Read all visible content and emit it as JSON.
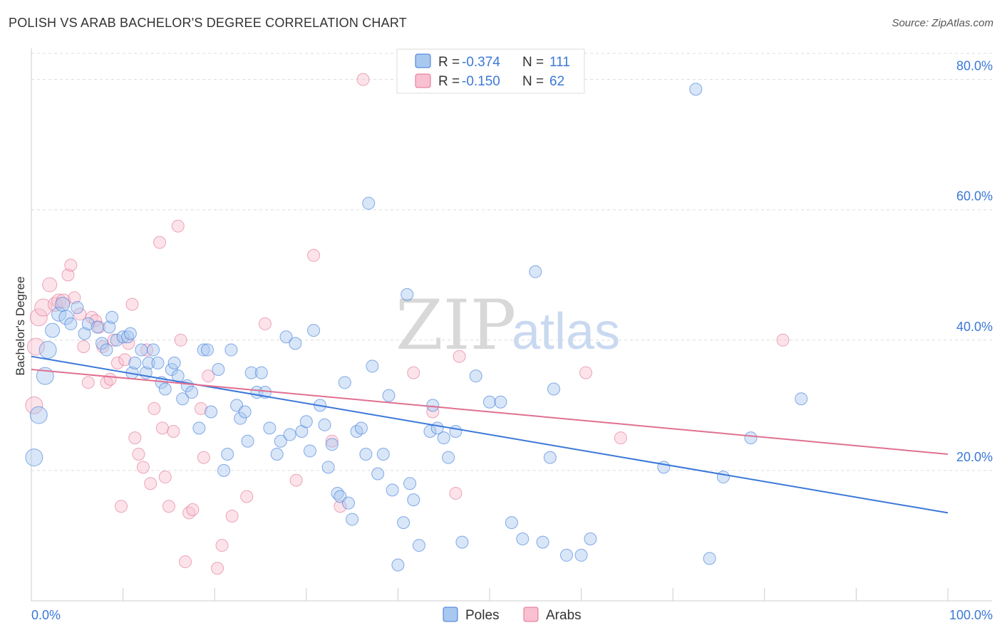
{
  "header": {
    "title": "POLISH VS ARAB BACHELOR'S DEGREE CORRELATION CHART",
    "source": "Source: ZipAtlas.com"
  },
  "watermark": {
    "zip": "ZIP",
    "atlas": "atlas"
  },
  "legend": {
    "rows": [
      {
        "r_label": "R =",
        "r_value": "-0.374",
        "n_label": "N =",
        "n_value": "111",
        "color": "#a8c8f0",
        "stroke": "#3b78d8"
      },
      {
        "r_label": "R =",
        "r_value": "-0.150",
        "n_label": "N =",
        "n_value": "62",
        "color": "#f8c0d0",
        "stroke": "#e07090"
      }
    ]
  },
  "bottom_legend": {
    "poles": "Poles",
    "arabs": "Arabs"
  },
  "chart_data": {
    "type": "scatter",
    "title": "POLISH VS ARAB BACHELOR'S DEGREE CORRELATION CHART",
    "xlabel": "",
    "ylabel": "Bachelor's Degree",
    "xlim": [
      0,
      100
    ],
    "ylim": [
      0,
      84
    ],
    "x_tick_labels": [
      "0.0%",
      "100.0%"
    ],
    "y_ticks": [
      20,
      40,
      60,
      80
    ],
    "y_tick_labels": [
      "20.0%",
      "40.0%",
      "60.0%",
      "80.0%"
    ],
    "grid": true,
    "colors": {
      "poles": "#3b78d8",
      "poles_fill": "#a8c8f0",
      "arabs": "#e07090",
      "arabs_fill": "#f8c0d0"
    },
    "series": [
      {
        "name": "Poles",
        "trend": {
          "x": [
            0,
            100
          ],
          "y": [
            37.5,
            13.5
          ]
        },
        "points": [
          [
            0.3,
            22
          ],
          [
            0.8,
            28.5
          ],
          [
            1.5,
            34.5
          ],
          [
            1.8,
            38.5
          ],
          [
            2.3,
            41.5
          ],
          [
            3,
            44
          ],
          [
            3.4,
            45.5
          ],
          [
            3.8,
            43.5
          ],
          [
            4.3,
            42.5
          ],
          [
            5,
            45
          ],
          [
            5.8,
            41
          ],
          [
            6.2,
            42.5
          ],
          [
            7.2,
            42
          ],
          [
            7.7,
            39.5
          ],
          [
            8.2,
            38.5
          ],
          [
            8.5,
            42
          ],
          [
            8.8,
            43.5
          ],
          [
            9.3,
            40
          ],
          [
            10,
            40.5
          ],
          [
            10.5,
            40.5
          ],
          [
            10.8,
            41
          ],
          [
            11,
            35
          ],
          [
            11.3,
            36.5
          ],
          [
            12,
            38.5
          ],
          [
            12.5,
            35
          ],
          [
            12.8,
            36.5
          ],
          [
            13.3,
            38.5
          ],
          [
            13.8,
            36.5
          ],
          [
            14.2,
            33.5
          ],
          [
            14.6,
            32.5
          ],
          [
            15.3,
            35.5
          ],
          [
            15.6,
            36.5
          ],
          [
            16,
            34.5
          ],
          [
            16.5,
            31
          ],
          [
            17,
            33
          ],
          [
            17.5,
            32
          ],
          [
            18.3,
            26.5
          ],
          [
            18.8,
            38.5
          ],
          [
            19.2,
            38.5
          ],
          [
            19.6,
            29
          ],
          [
            20.4,
            35.5
          ],
          [
            21,
            20
          ],
          [
            21.4,
            22.5
          ],
          [
            21.8,
            38.5
          ],
          [
            22.4,
            30
          ],
          [
            22.8,
            28
          ],
          [
            23.3,
            29
          ],
          [
            23.6,
            24.5
          ],
          [
            24,
            35
          ],
          [
            24.6,
            32
          ],
          [
            25.1,
            35
          ],
          [
            25.5,
            32
          ],
          [
            26,
            26.5
          ],
          [
            26.8,
            22.5
          ],
          [
            27.2,
            24.5
          ],
          [
            27.8,
            40.5
          ],
          [
            28.2,
            25.5
          ],
          [
            28.8,
            39.5
          ],
          [
            29.5,
            26
          ],
          [
            30,
            27.5
          ],
          [
            30.4,
            23
          ],
          [
            30.8,
            41.5
          ],
          [
            31.5,
            30
          ],
          [
            32,
            27
          ],
          [
            32.4,
            20.5
          ],
          [
            32.8,
            24
          ],
          [
            33.4,
            16.5
          ],
          [
            33.7,
            16
          ],
          [
            34.2,
            33.5
          ],
          [
            34.6,
            15
          ],
          [
            35,
            12.5
          ],
          [
            35.5,
            26
          ],
          [
            36,
            26.5
          ],
          [
            36.5,
            22.5
          ],
          [
            37.2,
            36
          ],
          [
            37.8,
            19.5
          ],
          [
            38.4,
            22.5
          ],
          [
            39,
            31.5
          ],
          [
            39.4,
            17
          ],
          [
            40,
            5.5
          ],
          [
            40.6,
            12
          ],
          [
            41,
            47
          ],
          [
            41.3,
            18
          ],
          [
            41.7,
            15.5
          ],
          [
            42.3,
            8.5
          ],
          [
            43.5,
            26
          ],
          [
            43.8,
            30
          ],
          [
            44.3,
            26.5
          ],
          [
            45,
            25
          ],
          [
            45.5,
            22
          ],
          [
            46.3,
            26
          ],
          [
            47,
            9
          ],
          [
            48.5,
            34.5
          ],
          [
            50,
            30.5
          ],
          [
            51.2,
            30.5
          ],
          [
            52.4,
            12
          ],
          [
            53.6,
            9.5
          ],
          [
            55,
            50.5
          ],
          [
            55.8,
            9
          ],
          [
            56.6,
            22
          ],
          [
            57,
            32.5
          ],
          [
            58.4,
            7
          ],
          [
            60,
            7
          ],
          [
            61,
            9.5
          ],
          [
            69,
            20.5
          ],
          [
            72.5,
            78.5
          ],
          [
            74,
            6.5
          ],
          [
            75.5,
            19
          ],
          [
            78.5,
            25
          ],
          [
            84,
            31
          ],
          [
            36.8,
            61
          ]
        ]
      },
      {
        "name": "Arabs",
        "trend": {
          "x": [
            0,
            100
          ],
          "y": [
            35.5,
            22.5
          ]
        },
        "points": [
          [
            0.3,
            30
          ],
          [
            0.5,
            39
          ],
          [
            0.8,
            43.5
          ],
          [
            1.3,
            45
          ],
          [
            2,
            48.5
          ],
          [
            2.6,
            45.5
          ],
          [
            3,
            46
          ],
          [
            3.5,
            46
          ],
          [
            4,
            50
          ],
          [
            4.3,
            51.5
          ],
          [
            4.7,
            46.5
          ],
          [
            5.3,
            44
          ],
          [
            5.7,
            39
          ],
          [
            6.2,
            33.5
          ],
          [
            6.6,
            43.5
          ],
          [
            7,
            43
          ],
          [
            7.4,
            42
          ],
          [
            7.8,
            39
          ],
          [
            8.2,
            33.5
          ],
          [
            8.6,
            34
          ],
          [
            9,
            40
          ],
          [
            9.4,
            36.5
          ],
          [
            9.8,
            14.5
          ],
          [
            10.2,
            37
          ],
          [
            10.6,
            39.5
          ],
          [
            11,
            45.5
          ],
          [
            11.3,
            25
          ],
          [
            11.7,
            22.5
          ],
          [
            12.2,
            20.5
          ],
          [
            12.6,
            38.5
          ],
          [
            13,
            18
          ],
          [
            13.4,
            29.5
          ],
          [
            14,
            55
          ],
          [
            14.3,
            26.5
          ],
          [
            14.6,
            19
          ],
          [
            15,
            14.5
          ],
          [
            15.5,
            26
          ],
          [
            16,
            57.5
          ],
          [
            16.3,
            40
          ],
          [
            16.8,
            6
          ],
          [
            17.2,
            13.5
          ],
          [
            17.6,
            14
          ],
          [
            18.5,
            29.5
          ],
          [
            18.8,
            22
          ],
          [
            19.3,
            34.5
          ],
          [
            20.3,
            5
          ],
          [
            20.8,
            8.5
          ],
          [
            21.9,
            13
          ],
          [
            23.5,
            16
          ],
          [
            25.5,
            42.5
          ],
          [
            28.9,
            18.5
          ],
          [
            30.8,
            53
          ],
          [
            32.8,
            24.5
          ],
          [
            33.7,
            14.5
          ],
          [
            36.2,
            80
          ],
          [
            41.7,
            35
          ],
          [
            43.8,
            29
          ],
          [
            46.3,
            16.5
          ],
          [
            46.7,
            37.5
          ],
          [
            60.5,
            35
          ],
          [
            64.3,
            25
          ],
          [
            82,
            40
          ]
        ]
      }
    ]
  }
}
